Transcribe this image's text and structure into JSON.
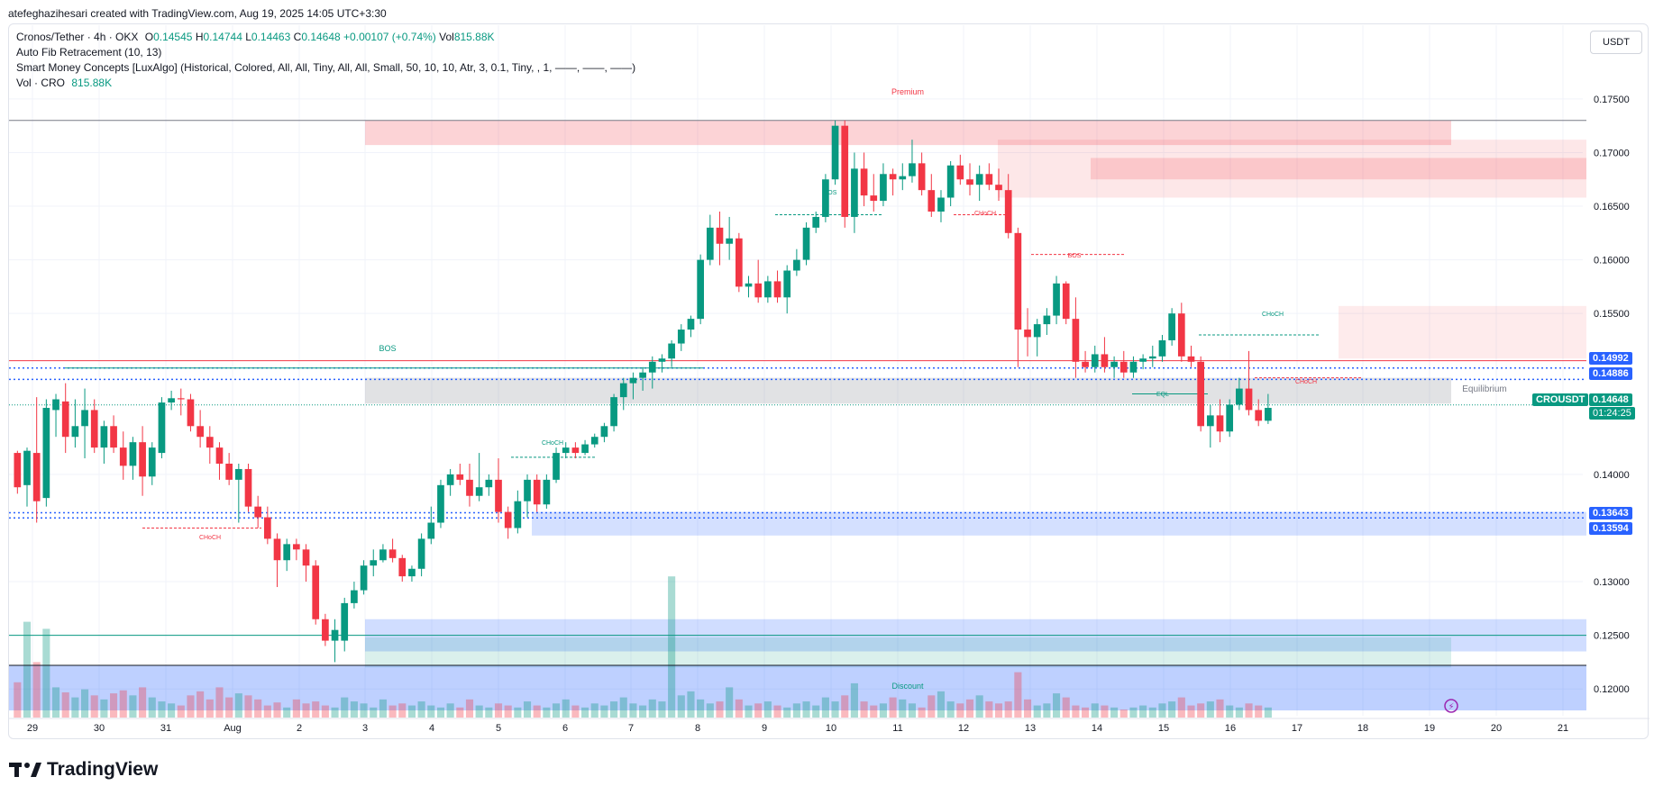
{
  "credit": "atefeghazihesari created with TradingView.com, Aug 19, 2025 14:05 UTC+3:30",
  "legend": {
    "symbol": "Cronos/Tether · 4h · OKX",
    "o_label": "O",
    "o": "0.14545",
    "h_label": "H",
    "h": "0.14744",
    "l_label": "L",
    "l": "0.14463",
    "c_label": "C",
    "c": "0.14648",
    "change": "+0.00107 (+0.74%)",
    "vol_label": "Vol",
    "vol": "815.88K",
    "fib": "Auto Fib Retracement (10, 13)",
    "smc": "Smart Money Concepts [LuxAlgo] (Historical, Colored, All, All, Tiny, All, All, Small, 50, 10, 10, Atr, 3, 0.1, Tiny, , 1, ——, ——, ——)",
    "volume_label": "Vol · CRO",
    "volume_value": "815.88K"
  },
  "currency": "USDT",
  "brand": "TradingView",
  "colors": {
    "up": "#089981",
    "down": "#f23645",
    "blue": "#2962ff",
    "grid": "#f0f3fa"
  },
  "price_tags": {
    "p1": "0.14992",
    "p2": "0.14886",
    "symbol": "CROUSDT",
    "last": "0.14648",
    "countdown": "01:24:25",
    "p3": "0.13643",
    "p4": "0.13594"
  },
  "chart_data": {
    "type": "candlestick",
    "ylim": [
      0.1175,
      0.1765
    ],
    "y_ticks": [
      "0.17500",
      "0.17000",
      "0.16500",
      "0.16000",
      "0.15500",
      "0.14000",
      "0.13000",
      "0.12500",
      "0.12000"
    ],
    "x_ticks": [
      "29",
      "30",
      "31",
      "Aug",
      "2",
      "3",
      "4",
      "5",
      "6",
      "7",
      "8",
      "9",
      "10",
      "11",
      "12",
      "13",
      "14",
      "15",
      "16",
      "17",
      "18",
      "19",
      "20",
      "21"
    ],
    "annotations": [
      "Premium",
      "BOS",
      "BOS",
      "CHoCH",
      "BOS",
      "CHoCH",
      "CHoCH",
      "CHoCH",
      "EQL",
      "CHoCH",
      "Equilibrium",
      "Discount"
    ],
    "candles": [
      [
        0.142,
        0.1422,
        0.1382,
        0.1388
      ],
      [
        0.139,
        0.1425,
        0.137,
        0.1422
      ],
      [
        0.142,
        0.1472,
        0.1355,
        0.1375
      ],
      [
        0.1378,
        0.147,
        0.137,
        0.1462
      ],
      [
        0.146,
        0.1475,
        0.1435,
        0.147
      ],
      [
        0.1468,
        0.1485,
        0.142,
        0.1435
      ],
      [
        0.1435,
        0.147,
        0.1425,
        0.1445
      ],
      [
        0.1445,
        0.148,
        0.1415,
        0.146
      ],
      [
        0.146,
        0.147,
        0.142,
        0.1425
      ],
      [
        0.1425,
        0.145,
        0.141,
        0.1445
      ],
      [
        0.1445,
        0.1455,
        0.142,
        0.1425
      ],
      [
        0.1425,
        0.144,
        0.1395,
        0.1408
      ],
      [
        0.1408,
        0.1435,
        0.1395,
        0.143
      ],
      [
        0.143,
        0.1445,
        0.138,
        0.1398
      ],
      [
        0.1398,
        0.143,
        0.139,
        0.1425
      ],
      [
        0.142,
        0.1472,
        0.1415,
        0.1467
      ],
      [
        0.1467,
        0.1478,
        0.146,
        0.1471
      ],
      [
        0.1471,
        0.148,
        0.1455,
        0.147
      ],
      [
        0.147,
        0.1475,
        0.144,
        0.1445
      ],
      [
        0.1445,
        0.146,
        0.1425,
        0.1435
      ],
      [
        0.1435,
        0.1445,
        0.141,
        0.1425
      ],
      [
        0.1425,
        0.143,
        0.1395,
        0.141
      ],
      [
        0.141,
        0.142,
        0.139,
        0.1395
      ],
      [
        0.1395,
        0.141,
        0.1355,
        0.1405
      ],
      [
        0.1405,
        0.141,
        0.1365,
        0.137
      ],
      [
        0.137,
        0.138,
        0.135,
        0.136
      ],
      [
        0.136,
        0.137,
        0.1335,
        0.134
      ],
      [
        0.134,
        0.1345,
        0.1295,
        0.132
      ],
      [
        0.132,
        0.134,
        0.131,
        0.1335
      ],
      [
        0.1335,
        0.134,
        0.132,
        0.133
      ],
      [
        0.133,
        0.1335,
        0.13,
        0.1315
      ],
      [
        0.1315,
        0.132,
        0.126,
        0.1265
      ],
      [
        0.1265,
        0.127,
        0.124,
        0.1245
      ],
      [
        0.1245,
        0.1265,
        0.1225,
        0.1255
      ],
      [
        0.1245,
        0.1285,
        0.1235,
        0.128
      ],
      [
        0.128,
        0.13,
        0.1275,
        0.1292
      ],
      [
        0.1292,
        0.132,
        0.1288,
        0.1315
      ],
      [
        0.1315,
        0.133,
        0.1305,
        0.132
      ],
      [
        0.132,
        0.1335,
        0.1318,
        0.133
      ],
      [
        0.133,
        0.134,
        0.1318,
        0.1322
      ],
      [
        0.1322,
        0.1325,
        0.13,
        0.1305
      ],
      [
        0.1305,
        0.1315,
        0.13,
        0.1312
      ],
      [
        0.1312,
        0.1345,
        0.1305,
        0.134
      ],
      [
        0.134,
        0.137,
        0.1335,
        0.1355
      ],
      [
        0.1355,
        0.1395,
        0.135,
        0.139
      ],
      [
        0.139,
        0.1405,
        0.138,
        0.14
      ],
      [
        0.14,
        0.141,
        0.139,
        0.1395
      ],
      [
        0.1395,
        0.141,
        0.137,
        0.138
      ],
      [
        0.138,
        0.142,
        0.1375,
        0.1388
      ],
      [
        0.1388,
        0.14,
        0.138,
        0.1395
      ],
      [
        0.1395,
        0.1415,
        0.1355,
        0.1365
      ],
      [
        0.1365,
        0.137,
        0.134,
        0.135
      ],
      [
        0.135,
        0.1385,
        0.1345,
        0.1375
      ],
      [
        0.1375,
        0.14,
        0.136,
        0.1395
      ],
      [
        0.1395,
        0.14,
        0.1365,
        0.1372
      ],
      [
        0.1372,
        0.14,
        0.1368,
        0.1395
      ],
      [
        0.1395,
        0.1425,
        0.1392,
        0.142
      ],
      [
        0.142,
        0.143,
        0.1415,
        0.1425
      ],
      [
        0.1425,
        0.143,
        0.1415,
        0.142
      ],
      [
        0.142,
        0.1432,
        0.1418,
        0.1428
      ],
      [
        0.1428,
        0.1438,
        0.1425,
        0.1435
      ],
      [
        0.1435,
        0.1448,
        0.143,
        0.1445
      ],
      [
        0.1445,
        0.1475,
        0.144,
        0.1472
      ],
      [
        0.1472,
        0.149,
        0.146,
        0.1485
      ],
      [
        0.1485,
        0.1495,
        0.147,
        0.149
      ],
      [
        0.149,
        0.15,
        0.1478,
        0.1495
      ],
      [
        0.1495,
        0.151,
        0.148,
        0.1505
      ],
      [
        0.1505,
        0.1512,
        0.1495,
        0.1508
      ],
      [
        0.1508,
        0.1525,
        0.15,
        0.1522
      ],
      [
        0.1522,
        0.154,
        0.1515,
        0.1535
      ],
      [
        0.1535,
        0.1548,
        0.1528,
        0.1545
      ],
      [
        0.1545,
        0.1605,
        0.154,
        0.16
      ],
      [
        0.16,
        0.1642,
        0.1595,
        0.163
      ],
      [
        0.163,
        0.1645,
        0.1595,
        0.1615
      ],
      [
        0.1615,
        0.164,
        0.16,
        0.162
      ],
      [
        0.162,
        0.1625,
        0.157,
        0.1575
      ],
      [
        0.1575,
        0.1585,
        0.1565,
        0.1578
      ],
      [
        0.1578,
        0.16,
        0.156,
        0.1565
      ],
      [
        0.1565,
        0.1585,
        0.156,
        0.158
      ],
      [
        0.158,
        0.159,
        0.156,
        0.1565
      ],
      [
        0.1565,
        0.1595,
        0.155,
        0.159
      ],
      [
        0.159,
        0.161,
        0.1585,
        0.16
      ],
      [
        0.16,
        0.1635,
        0.1595,
        0.163
      ],
      [
        0.163,
        0.1645,
        0.1625,
        0.164
      ],
      [
        0.164,
        0.168,
        0.1635,
        0.1675
      ],
      [
        0.1675,
        0.173,
        0.167,
        0.1725
      ],
      [
        0.1725,
        0.173,
        0.163,
        0.164
      ],
      [
        0.164,
        0.17,
        0.1625,
        0.1685
      ],
      [
        0.1685,
        0.17,
        0.165,
        0.166
      ],
      [
        0.166,
        0.168,
        0.1645,
        0.1655
      ],
      [
        0.1655,
        0.169,
        0.165,
        0.168
      ],
      [
        0.168,
        0.1685,
        0.166,
        0.1675
      ],
      [
        0.1675,
        0.169,
        0.1665,
        0.1678
      ],
      [
        0.1678,
        0.1712,
        0.1672,
        0.169
      ],
      [
        0.169,
        0.17,
        0.166,
        0.1665
      ],
      [
        0.1665,
        0.168,
        0.164,
        0.1645
      ],
      [
        0.1645,
        0.1665,
        0.1635,
        0.1658
      ],
      [
        0.1658,
        0.1692,
        0.165,
        0.1688
      ],
      [
        0.1688,
        0.1698,
        0.167,
        0.1675
      ],
      [
        0.1675,
        0.169,
        0.166,
        0.167
      ],
      [
        0.167,
        0.1688,
        0.1655,
        0.168
      ],
      [
        0.168,
        0.169,
        0.1665,
        0.167
      ],
      [
        0.167,
        0.1685,
        0.1655,
        0.1665
      ],
      [
        0.1665,
        0.168,
        0.162,
        0.1625
      ],
      [
        0.1625,
        0.163,
        0.15,
        0.1535
      ],
      [
        0.1535,
        0.1555,
        0.151,
        0.1528
      ],
      [
        0.1528,
        0.1545,
        0.151,
        0.154
      ],
      [
        0.154,
        0.1555,
        0.153,
        0.1548
      ],
      [
        0.1548,
        0.1585,
        0.154,
        0.1578
      ],
      [
        0.1578,
        0.158,
        0.154,
        0.1545
      ],
      [
        0.1545,
        0.1565,
        0.149,
        0.1505
      ],
      [
        0.1505,
        0.1515,
        0.1495,
        0.15
      ],
      [
        0.15,
        0.152,
        0.1495,
        0.1512
      ],
      [
        0.1512,
        0.1528,
        0.1495,
        0.15
      ],
      [
        0.15,
        0.151,
        0.149,
        0.1505
      ],
      [
        0.1505,
        0.1515,
        0.149,
        0.1495
      ],
      [
        0.1495,
        0.151,
        0.149,
        0.1505
      ],
      [
        0.1505,
        0.1512,
        0.1498,
        0.1508
      ],
      [
        0.1508,
        0.152,
        0.15,
        0.151
      ],
      [
        0.151,
        0.153,
        0.1505,
        0.1525
      ],
      [
        0.1525,
        0.1555,
        0.152,
        0.155
      ],
      [
        0.155,
        0.156,
        0.1505,
        0.151
      ],
      [
        0.151,
        0.152,
        0.15,
        0.1505
      ],
      [
        0.1505,
        0.151,
        0.144,
        0.1445
      ],
      [
        0.1445,
        0.1465,
        0.1425,
        0.1455
      ],
      [
        0.1455,
        0.147,
        0.143,
        0.144
      ],
      [
        0.144,
        0.147,
        0.1435,
        0.1465
      ],
      [
        0.1465,
        0.149,
        0.146,
        0.148
      ],
      [
        0.148,
        0.1515,
        0.1455,
        0.146
      ],
      [
        0.146,
        0.147,
        0.1445,
        0.145
      ],
      [
        0.145,
        0.1475,
        0.1447,
        0.1462
      ]
    ],
    "volume": [
      0.35,
      0.95,
      0.55,
      0.88,
      0.3,
      0.25,
      0.2,
      0.28,
      0.22,
      0.18,
      0.24,
      0.27,
      0.22,
      0.3,
      0.2,
      0.16,
      0.14,
      0.12,
      0.22,
      0.26,
      0.18,
      0.3,
      0.2,
      0.24,
      0.22,
      0.18,
      0.12,
      0.15,
      0.1,
      0.18,
      0.14,
      0.16,
      0.12,
      0.1,
      0.2,
      0.16,
      0.14,
      0.1,
      0.18,
      0.12,
      0.14,
      0.12,
      0.16,
      0.12,
      0.1,
      0.14,
      0.1,
      0.18,
      0.12,
      0.1,
      0.14,
      0.12,
      0.1,
      0.16,
      0.12,
      0.1,
      0.14,
      0.18,
      0.12,
      0.1,
      0.14,
      0.12,
      0.16,
      0.2,
      0.14,
      0.12,
      0.18,
      0.16,
      1.4,
      0.22,
      0.26,
      0.18,
      0.14,
      0.16,
      0.3,
      0.18,
      0.12,
      0.14,
      0.16,
      0.12,
      0.1,
      0.14,
      0.16,
      0.12,
      0.2,
      0.16,
      0.22,
      0.34,
      0.16,
      0.12,
      0.14,
      0.2,
      0.18,
      0.14,
      0.1,
      0.22,
      0.26,
      0.16,
      0.14,
      0.18,
      0.22,
      0.16,
      0.14,
      0.16,
      0.45,
      0.18,
      0.12,
      0.14,
      0.24,
      0.2,
      0.12,
      0.1,
      0.14,
      0.12,
      0.1,
      0.08,
      0.1,
      0.12,
      0.1,
      0.14,
      0.16,
      0.2,
      0.12,
      0.14,
      0.16,
      0.18,
      0.12,
      0.1,
      0.14,
      0.12,
      0.1
    ]
  }
}
